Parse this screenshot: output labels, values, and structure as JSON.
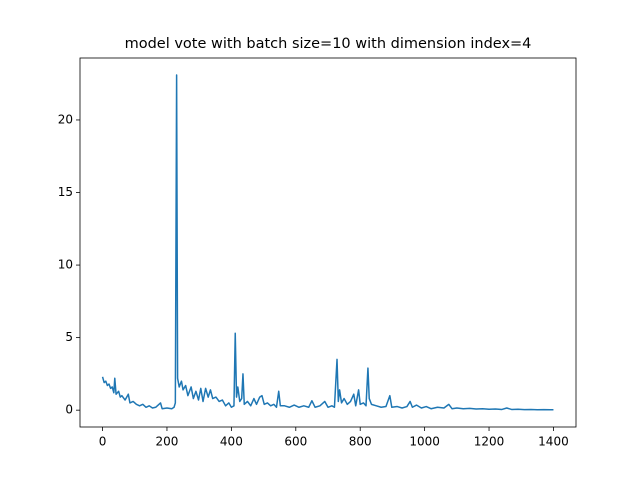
{
  "chart_data": {
    "type": "line",
    "title": "model vote with batch size=10 with dimension index=4",
    "color": "#1f77b4",
    "x": [
      0,
      5,
      10,
      15,
      20,
      25,
      30,
      35,
      38,
      42,
      50,
      55,
      60,
      70,
      80,
      85,
      95,
      105,
      115,
      125,
      135,
      145,
      155,
      165,
      180,
      185,
      200,
      215,
      222,
      226,
      230,
      233,
      238,
      245,
      250,
      258,
      265,
      275,
      282,
      290,
      298,
      305,
      312,
      320,
      328,
      335,
      342,
      352,
      362,
      372,
      382,
      392,
      400,
      408,
      412,
      416,
      420,
      426,
      432,
      436,
      440,
      450,
      460,
      470,
      478,
      488,
      495,
      502,
      512,
      522,
      532,
      540,
      547,
      552,
      565,
      580,
      595,
      610,
      625,
      640,
      650,
      660,
      675,
      690,
      700,
      712,
      720,
      728,
      732,
      736,
      742,
      750,
      760,
      770,
      780,
      786,
      795,
      800,
      810,
      818,
      824,
      828,
      835,
      850,
      865,
      880,
      892,
      898,
      915,
      930,
      945,
      955,
      962,
      975,
      990,
      1005,
      1020,
      1040,
      1060,
      1075,
      1085,
      1100,
      1120,
      1140,
      1160,
      1180,
      1200,
      1220,
      1240,
      1255,
      1270,
      1290,
      1310,
      1330,
      1350,
      1370,
      1390,
      1400
    ],
    "values": [
      2.3,
      1.9,
      2.0,
      1.7,
      1.8,
      1.5,
      1.6,
      1.2,
      2.2,
      1.1,
      1.3,
      0.9,
      1.0,
      0.7,
      1.1,
      0.5,
      0.6,
      0.4,
      0.3,
      0.4,
      0.2,
      0.3,
      0.15,
      0.2,
      0.5,
      0.1,
      0.15,
      0.1,
      0.2,
      0.5,
      23.1,
      2.2,
      1.6,
      2.0,
      1.4,
      1.7,
      1.0,
      1.6,
      0.8,
      1.3,
      0.7,
      1.5,
      0.6,
      1.5,
      0.9,
      1.4,
      0.8,
      0.9,
      0.6,
      0.7,
      0.3,
      0.5,
      0.2,
      0.3,
      5.3,
      0.9,
      1.6,
      0.6,
      0.8,
      2.5,
      0.4,
      0.6,
      0.3,
      0.8,
      0.4,
      0.9,
      1.0,
      0.4,
      0.5,
      0.3,
      0.4,
      0.2,
      1.3,
      0.3,
      0.3,
      0.2,
      0.35,
      0.2,
      0.3,
      0.2,
      0.65,
      0.2,
      0.3,
      0.6,
      0.2,
      0.3,
      0.2,
      3.5,
      0.6,
      1.4,
      0.5,
      0.8,
      0.4,
      0.6,
      1.1,
      0.3,
      1.4,
      0.4,
      0.5,
      0.3,
      2.9,
      0.8,
      0.4,
      0.3,
      0.2,
      0.25,
      1.0,
      0.2,
      0.25,
      0.15,
      0.25,
      0.6,
      0.2,
      0.35,
      0.15,
      0.25,
      0.1,
      0.2,
      0.15,
      0.4,
      0.1,
      0.15,
      0.1,
      0.12,
      0.08,
      0.1,
      0.06,
      0.08,
      0.05,
      0.15,
      0.05,
      0.06,
      0.04,
      0.05,
      0.03,
      0.04,
      0.03,
      0.03
    ],
    "xlim": [
      -70,
      1470
    ],
    "ylim": [
      -1.16,
      24.27
    ],
    "xticks": [
      0,
      200,
      400,
      600,
      800,
      1000,
      1200,
      1400
    ],
    "yticks": [
      0,
      5,
      10,
      15,
      20
    ]
  }
}
